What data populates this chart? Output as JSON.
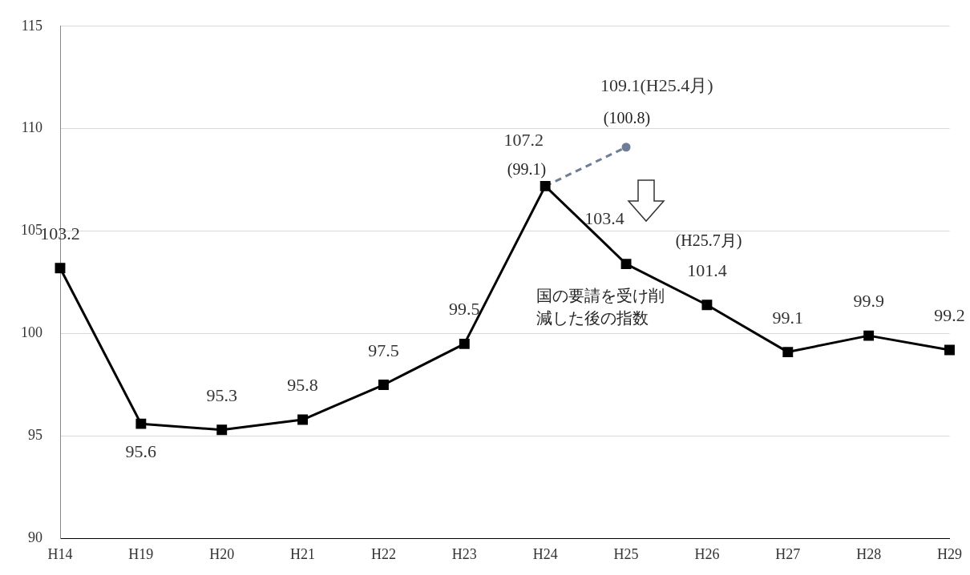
{
  "chart_data": {
    "type": "line",
    "categories": [
      "H14",
      "H19",
      "H20",
      "H21",
      "H22",
      "H23",
      "H24",
      "H25",
      "H26",
      "H27",
      "H28",
      "H29"
    ],
    "series": [
      {
        "color": "#000000",
        "marker": "square",
        "line_style": "solid",
        "values": [
          103.2,
          95.6,
          95.3,
          95.8,
          97.5,
          99.5,
          107.2,
          103.4,
          101.4,
          99.1,
          99.9,
          99.2
        ]
      },
      {
        "color": "#6e7e96",
        "marker": "circle",
        "line_style": "dashed",
        "values": [
          null,
          null,
          null,
          null,
          null,
          null,
          107.2,
          109.1,
          null,
          null,
          null,
          null
        ],
        "value_labels": [
          null,
          null,
          null,
          null,
          null,
          null,
          null,
          "109.1(H25.4月)",
          null,
          null,
          null,
          null
        ]
      }
    ],
    "data_labels": true,
    "ylim": [
      90,
      115
    ],
    "yticks": [
      90,
      95,
      100,
      105,
      110,
      115
    ],
    "grid": "y",
    "legend": false,
    "annotations": [
      "(99.1)",
      "(100.8)",
      "(H25.7月)",
      "国の要請を受け削減した後の指数"
    ]
  }
}
